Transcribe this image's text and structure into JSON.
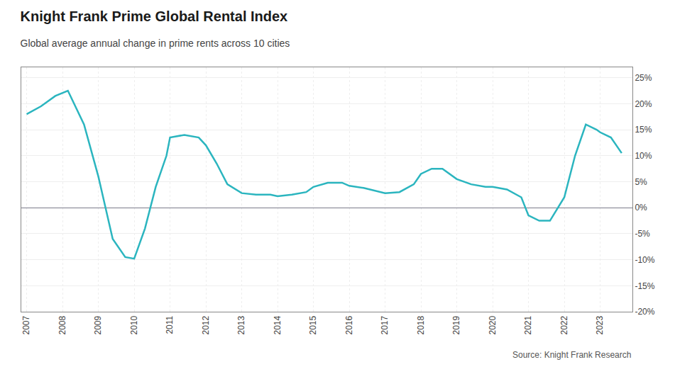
{
  "chart_data": {
    "type": "line",
    "title": "Knight Frank Prime Global Rental Index",
    "subtitle": "Global average annual change in prime rents across 10 cities",
    "source": "Source: Knight Frank Research",
    "color": "#2bb5bf",
    "x": [
      2007.0,
      2007.4,
      2007.8,
      2008.15,
      2008.6,
      2009.0,
      2009.4,
      2009.75,
      2010.0,
      2010.3,
      2010.6,
      2010.9,
      2011.0,
      2011.4,
      2011.8,
      2012.0,
      2012.3,
      2012.6,
      2013.0,
      2013.4,
      2013.8,
      2014.0,
      2014.4,
      2014.8,
      2015.0,
      2015.4,
      2015.8,
      2016.0,
      2016.4,
      2016.8,
      2017.0,
      2017.4,
      2017.8,
      2018.0,
      2018.3,
      2018.6,
      2019.0,
      2019.4,
      2019.8,
      2020.0,
      2020.4,
      2020.8,
      2021.0,
      2021.3,
      2021.6,
      2022.0,
      2022.3,
      2022.6,
      2022.9,
      2023.0,
      2023.3,
      2023.6
    ],
    "values": [
      18.0,
      19.5,
      21.5,
      22.5,
      16.0,
      6.0,
      -6.0,
      -9.5,
      -9.8,
      -4.0,
      4.0,
      10.0,
      13.5,
      14.0,
      13.5,
      12.0,
      8.5,
      4.5,
      2.8,
      2.5,
      2.5,
      2.2,
      2.5,
      3.0,
      4.0,
      4.8,
      4.8,
      4.2,
      3.8,
      3.2,
      2.8,
      3.0,
      4.5,
      6.5,
      7.5,
      7.5,
      5.5,
      4.5,
      4.0,
      4.0,
      3.5,
      2.0,
      -1.5,
      -2.5,
      -2.5,
      2.0,
      10.0,
      16.0,
      15.0,
      14.5,
      13.5,
      10.5
    ],
    "xlim": [
      2006.85,
      2023.9
    ],
    "ylim": [
      -20,
      27
    ],
    "xticks": [
      2007,
      2008,
      2009,
      2010,
      2011,
      2012,
      2013,
      2014,
      2015,
      2016,
      2017,
      2018,
      2019,
      2020,
      2021,
      2022,
      2023
    ],
    "yticks": [
      {
        "value": -20,
        "label": "-20%"
      },
      {
        "value": -15,
        "label": "-15%"
      },
      {
        "value": -10,
        "label": "-10%"
      },
      {
        "value": -5,
        "label": "-5%"
      },
      {
        "value": 0,
        "label": "0%"
      },
      {
        "value": 5,
        "label": "5%"
      },
      {
        "value": 10,
        "label": "10%"
      },
      {
        "value": 15,
        "label": "15%"
      },
      {
        "value": 20,
        "label": "20%"
      },
      {
        "value": 25,
        "label": "25%"
      }
    ],
    "grid": true
  }
}
